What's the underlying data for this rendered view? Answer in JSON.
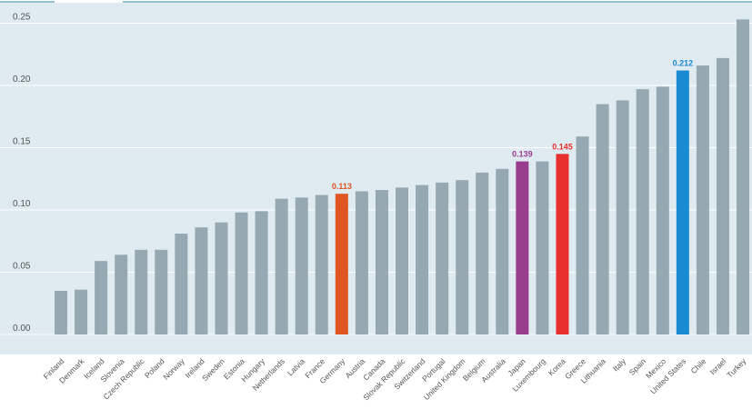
{
  "chart_data": {
    "type": "bar",
    "title": "",
    "xlabel": "",
    "ylabel": "",
    "ylim": [
      -0.02,
      0.26
    ],
    "yticks": [
      0.0,
      0.05,
      0.1,
      0.15,
      0.2,
      0.25
    ],
    "ytick_labels": [
      "0.00",
      "0.05",
      "0.10",
      "0.15",
      "0.20",
      "0.25"
    ],
    "grid": true,
    "categories": [
      "Finland",
      "Denmark",
      "Iceland",
      "Slovenia",
      "Czech Republic",
      "Poland",
      "Norway",
      "Ireland",
      "Sweden",
      "Estonia",
      "Hungary",
      "Netherlands",
      "Latvia",
      "France",
      "Germany",
      "Austria",
      "Canada",
      "Slovak Republic",
      "Switzerland",
      "Portugal",
      "United Kingdom",
      "Belgium",
      "Australia",
      "Japan",
      "Luxembourg",
      "Korea",
      "Greece",
      "Lithuania",
      "Italy",
      "Spain",
      "Mexico",
      "United States",
      "Chile",
      "Israel",
      "Turkey"
    ],
    "values": [
      0.035,
      0.036,
      0.059,
      0.064,
      0.068,
      0.068,
      0.081,
      0.086,
      0.09,
      0.098,
      0.099,
      0.109,
      0.11,
      0.112,
      0.113,
      0.115,
      0.116,
      0.118,
      0.12,
      0.122,
      0.124,
      0.13,
      0.133,
      0.139,
      0.139,
      0.145,
      0.159,
      0.185,
      0.188,
      0.197,
      0.199,
      0.212,
      0.216,
      0.222,
      0.253
    ],
    "highlights": [
      {
        "category": "Germany",
        "label": "0.113",
        "color": "#e05521"
      },
      {
        "category": "Japan",
        "label": "0.139",
        "color": "#993d8f"
      },
      {
        "category": "Korea",
        "label": "0.145",
        "color": "#e8312f"
      },
      {
        "category": "United States",
        "label": "0.212",
        "color": "#1a8ad3"
      }
    ],
    "default_color": "#96a8b1",
    "background_color": "#dfeaf1"
  }
}
